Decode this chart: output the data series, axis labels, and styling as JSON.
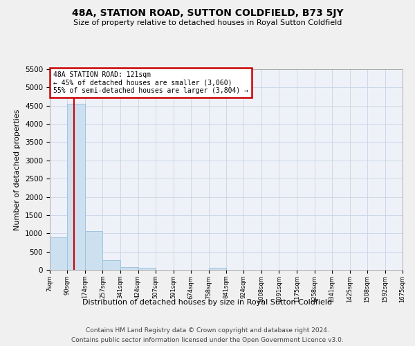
{
  "title": "48A, STATION ROAD, SUTTON COLDFIELD, B73 5JY",
  "subtitle": "Size of property relative to detached houses in Royal Sutton Coldfield",
  "xlabel": "Distribution of detached houses by size in Royal Sutton Coldfield",
  "ylabel": "Number of detached properties",
  "footnote1": "Contains HM Land Registry data © Crown copyright and database right 2024.",
  "footnote2": "Contains public sector information licensed under the Open Government Licence v3.0.",
  "bin_edges": [
    7,
    90,
    174,
    257,
    341,
    424,
    507,
    591,
    674,
    758,
    841,
    924,
    1008,
    1091,
    1175,
    1258,
    1341,
    1425,
    1508,
    1592,
    1675
  ],
  "bar_heights": [
    900,
    4550,
    1060,
    270,
    80,
    60,
    0,
    0,
    0,
    60,
    0,
    0,
    0,
    0,
    0,
    0,
    0,
    0,
    0,
    0
  ],
  "bar_color": "#cce0f0",
  "bar_edgecolor": "#a0c4e0",
  "grid_color": "#c8d4e8",
  "bg_color": "#eef2f8",
  "fig_bg_color": "#f0f0f0",
  "vline_x": 121,
  "vline_color": "#cc0000",
  "annotation_text": "48A STATION ROAD: 121sqm\n← 45% of detached houses are smaller (3,060)\n55% of semi-detached houses are larger (3,804) →",
  "annotation_box_color": "#cc0000",
  "ylim": [
    0,
    5500
  ],
  "yticks": [
    0,
    500,
    1000,
    1500,
    2000,
    2500,
    3000,
    3500,
    4000,
    4500,
    5000,
    5500
  ],
  "tick_labels": [
    "7sqm",
    "90sqm",
    "174sqm",
    "257sqm",
    "341sqm",
    "424sqm",
    "507sqm",
    "591sqm",
    "674sqm",
    "758sqm",
    "841sqm",
    "924sqm",
    "1008sqm",
    "1091sqm",
    "1175sqm",
    "1258sqm",
    "1341sqm",
    "1425sqm",
    "1508sqm",
    "1592sqm",
    "1675sqm"
  ]
}
